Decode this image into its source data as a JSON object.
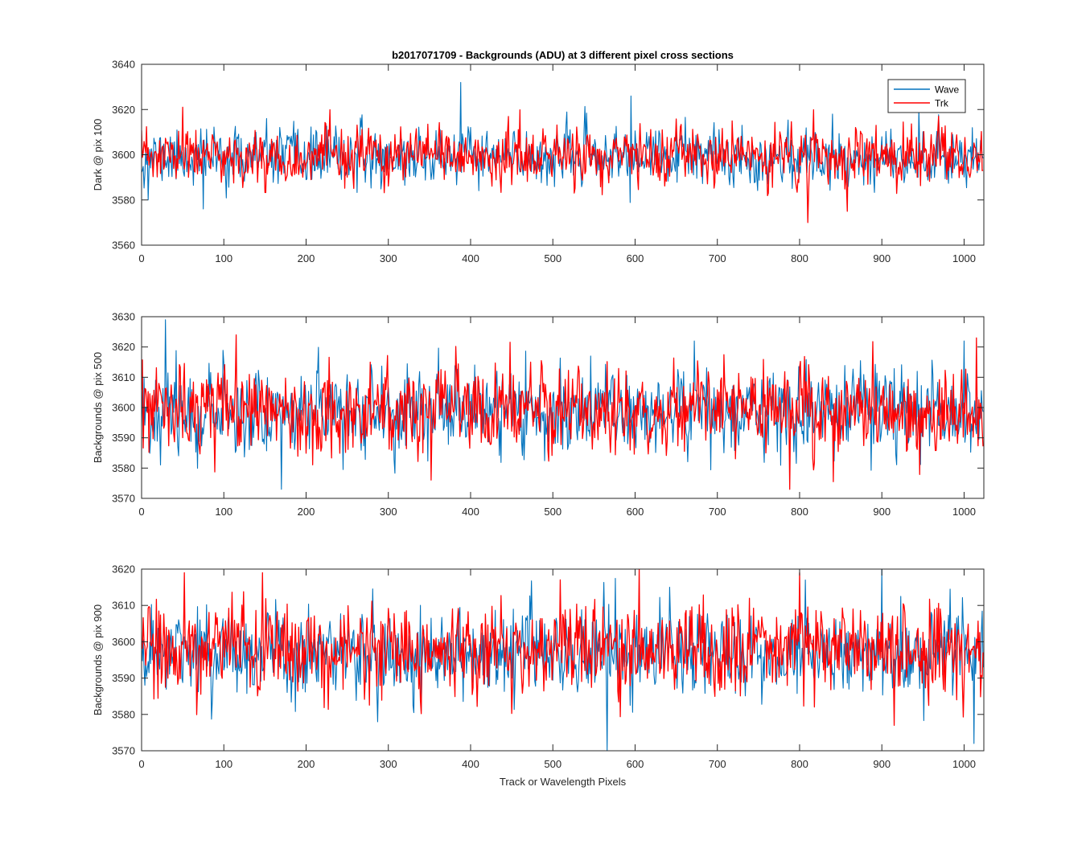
{
  "figure": {
    "background": "#ffffff",
    "axis_color": "#262626"
  },
  "chart_data": [
    {
      "type": "line",
      "title": "b2017071709 - Backgrounds (ADU) at 3 different pixel cross sections",
      "ylabel": "Dark @ pix 100",
      "xlabel": "",
      "xlim": [
        0,
        1024
      ],
      "ylim": [
        3560,
        3640
      ],
      "xticks": [
        0,
        100,
        200,
        300,
        400,
        500,
        600,
        700,
        800,
        900,
        1000
      ],
      "yticks": [
        3560,
        3580,
        3600,
        3620,
        3640
      ],
      "grid": false,
      "legend": {
        "placement": "top-right",
        "entries": [
          "Wave",
          "Trk"
        ]
      },
      "series": [
        {
          "name": "Wave",
          "color": "#0072BD",
          "mean": 3599,
          "noise_amplitude": 7,
          "n_points": 1024,
          "seed": 11,
          "peaks": [
            {
              "x": 8,
              "y": 3580
            },
            {
              "x": 75,
              "y": 3576
            },
            {
              "x": 388,
              "y": 3632
            },
            {
              "x": 595,
              "y": 3626
            },
            {
              "x": 840,
              "y": 3618
            },
            {
              "x": 945,
              "y": 3620
            },
            {
              "x": 1010,
              "y": 3612
            }
          ]
        },
        {
          "name": "Trk",
          "color": "#FF0000",
          "mean": 3599,
          "noise_amplitude": 7,
          "n_points": 1024,
          "seed": 23,
          "peaks": [
            {
              "x": 50,
              "y": 3621
            },
            {
              "x": 810,
              "y": 3570
            },
            {
              "x": 858,
              "y": 3575
            }
          ]
        }
      ]
    },
    {
      "type": "line",
      "title": "",
      "ylabel": "Backgrounds @ pix 500",
      "xlabel": "",
      "xlim": [
        0,
        1024
      ],
      "ylim": [
        3570,
        3630
      ],
      "xticks": [
        0,
        100,
        200,
        300,
        400,
        500,
        600,
        700,
        800,
        900,
        1000
      ],
      "yticks": [
        3570,
        3580,
        3590,
        3600,
        3610,
        3620,
        3630
      ],
      "grid": false,
      "series": [
        {
          "name": "Wave",
          "color": "#0072BD",
          "mean": 3599,
          "noise_amplitude": 8,
          "n_points": 1024,
          "seed": 37,
          "peaks": [
            {
              "x": 29,
              "y": 3629
            },
            {
              "x": 170,
              "y": 3573
            },
            {
              "x": 672,
              "y": 3622
            },
            {
              "x": 1000,
              "y": 3622
            }
          ]
        },
        {
          "name": "Trk",
          "color": "#FF0000",
          "mean": 3599,
          "noise_amplitude": 8,
          "n_points": 1024,
          "seed": 53,
          "peaks": [
            {
              "x": 115,
              "y": 3624
            },
            {
              "x": 788,
              "y": 3573
            },
            {
              "x": 1015,
              "y": 3623
            }
          ]
        }
      ]
    },
    {
      "type": "line",
      "title": "",
      "ylabel": "Backgrounds @ pix 900",
      "xlabel": "Track or Wavelength Pixels",
      "xlim": [
        0,
        1024
      ],
      "ylim": [
        3570,
        3620
      ],
      "xticks": [
        0,
        100,
        200,
        300,
        400,
        500,
        600,
        700,
        800,
        900,
        1000
      ],
      "yticks": [
        3570,
        3580,
        3590,
        3600,
        3610,
        3620
      ],
      "grid": false,
      "series": [
        {
          "name": "Wave",
          "color": "#0072BD",
          "mean": 3597,
          "noise_amplitude": 7,
          "n_points": 1024,
          "seed": 71,
          "peaks": [
            {
              "x": 566,
              "y": 3570
            },
            {
              "x": 900,
              "y": 3620
            },
            {
              "x": 1012,
              "y": 3572
            }
          ]
        },
        {
          "name": "Trk",
          "color": "#FF0000",
          "mean": 3598,
          "noise_amplitude": 7,
          "n_points": 1024,
          "seed": 89,
          "peaks": [
            {
              "x": 52,
              "y": 3619
            },
            {
              "x": 147,
              "y": 3619
            },
            {
              "x": 605,
              "y": 3620
            },
            {
              "x": 800,
              "y": 3619
            },
            {
              "x": 915,
              "y": 3577
            }
          ]
        }
      ]
    }
  ]
}
